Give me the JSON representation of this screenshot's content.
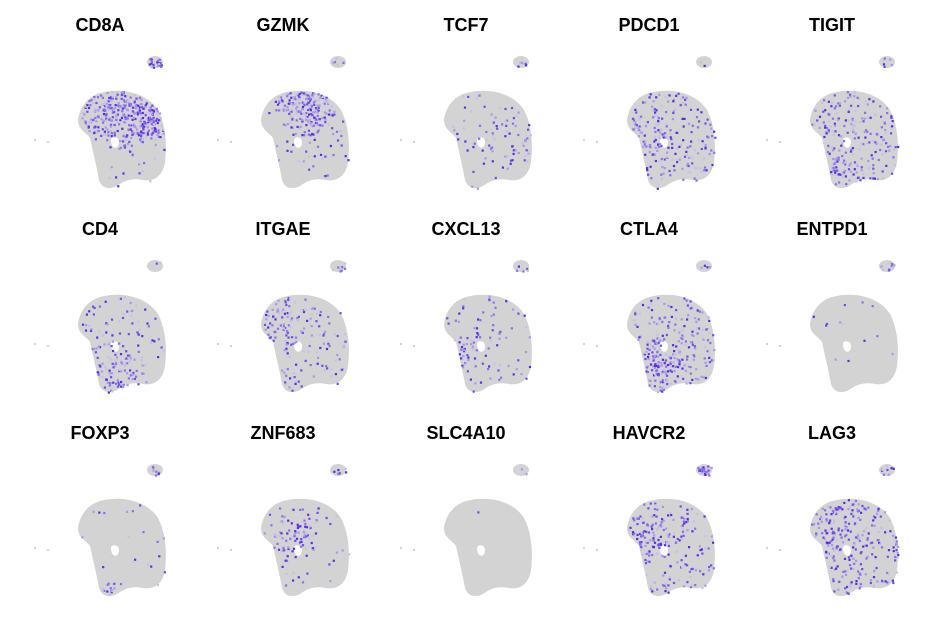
{
  "chart_data": [
    {
      "type": "scatter",
      "title": "CD8A"
    },
    {
      "type": "scatter",
      "title": "GZMK"
    },
    {
      "type": "scatter",
      "title": "TCF7"
    },
    {
      "type": "scatter",
      "title": "PDCD1"
    },
    {
      "type": "scatter",
      "title": "TIGIT"
    },
    {
      "type": "scatter",
      "title": "CD4"
    },
    {
      "type": "scatter",
      "title": "ITGAE"
    },
    {
      "type": "scatter",
      "title": "CXCL13"
    },
    {
      "type": "scatter",
      "title": "CTLA4"
    },
    {
      "type": "scatter",
      "title": "ENTPD1"
    },
    {
      "type": "scatter",
      "title": "FOXP3"
    },
    {
      "type": "scatter",
      "title": "ZNF683"
    },
    {
      "type": "scatter",
      "title": "SLC4A10"
    },
    {
      "type": "scatter",
      "title": "HAVCR2"
    },
    {
      "type": "scatter",
      "title": "LAG3"
    }
  ]
}
